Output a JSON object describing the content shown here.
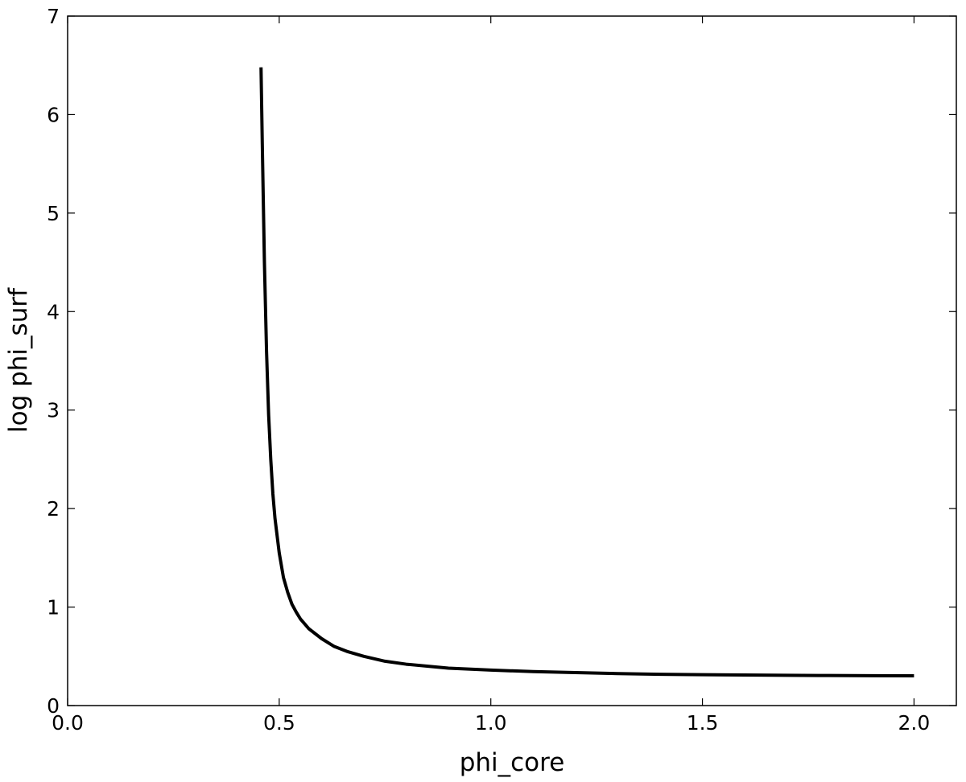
{
  "chart_data": {
    "type": "line",
    "title": "",
    "xlabel": "phi_core",
    "ylabel": "log phi_surf",
    "xlim": [
      0.0,
      2.1
    ],
    "ylim": [
      0,
      7
    ],
    "xticks": [
      "0.0",
      "0.5",
      "1.0",
      "1.5",
      "2.0"
    ],
    "yticks": [
      "0",
      "1",
      "2",
      "3",
      "4",
      "5",
      "6",
      "7"
    ],
    "grid": false,
    "legend": "none",
    "series": [
      {
        "color": "#000000",
        "x": [
          0.457,
          0.46,
          0.465,
          0.47,
          0.475,
          0.48,
          0.485,
          0.49,
          0.5,
          0.51,
          0.52,
          0.53,
          0.54,
          0.55,
          0.57,
          0.6,
          0.63,
          0.66,
          0.7,
          0.75,
          0.8,
          0.9,
          1.0,
          1.1,
          1.2,
          1.3,
          1.4,
          1.5,
          1.6,
          1.7,
          1.8,
          1.9,
          2.0
        ],
        "y": [
          6.48,
          5.7,
          4.5,
          3.6,
          2.95,
          2.5,
          2.15,
          1.9,
          1.55,
          1.3,
          1.15,
          1.03,
          0.95,
          0.88,
          0.78,
          0.68,
          0.6,
          0.55,
          0.5,
          0.45,
          0.42,
          0.38,
          0.36,
          0.345,
          0.335,
          0.325,
          0.318,
          0.313,
          0.31,
          0.307,
          0.305,
          0.303,
          0.302
        ]
      }
    ]
  }
}
